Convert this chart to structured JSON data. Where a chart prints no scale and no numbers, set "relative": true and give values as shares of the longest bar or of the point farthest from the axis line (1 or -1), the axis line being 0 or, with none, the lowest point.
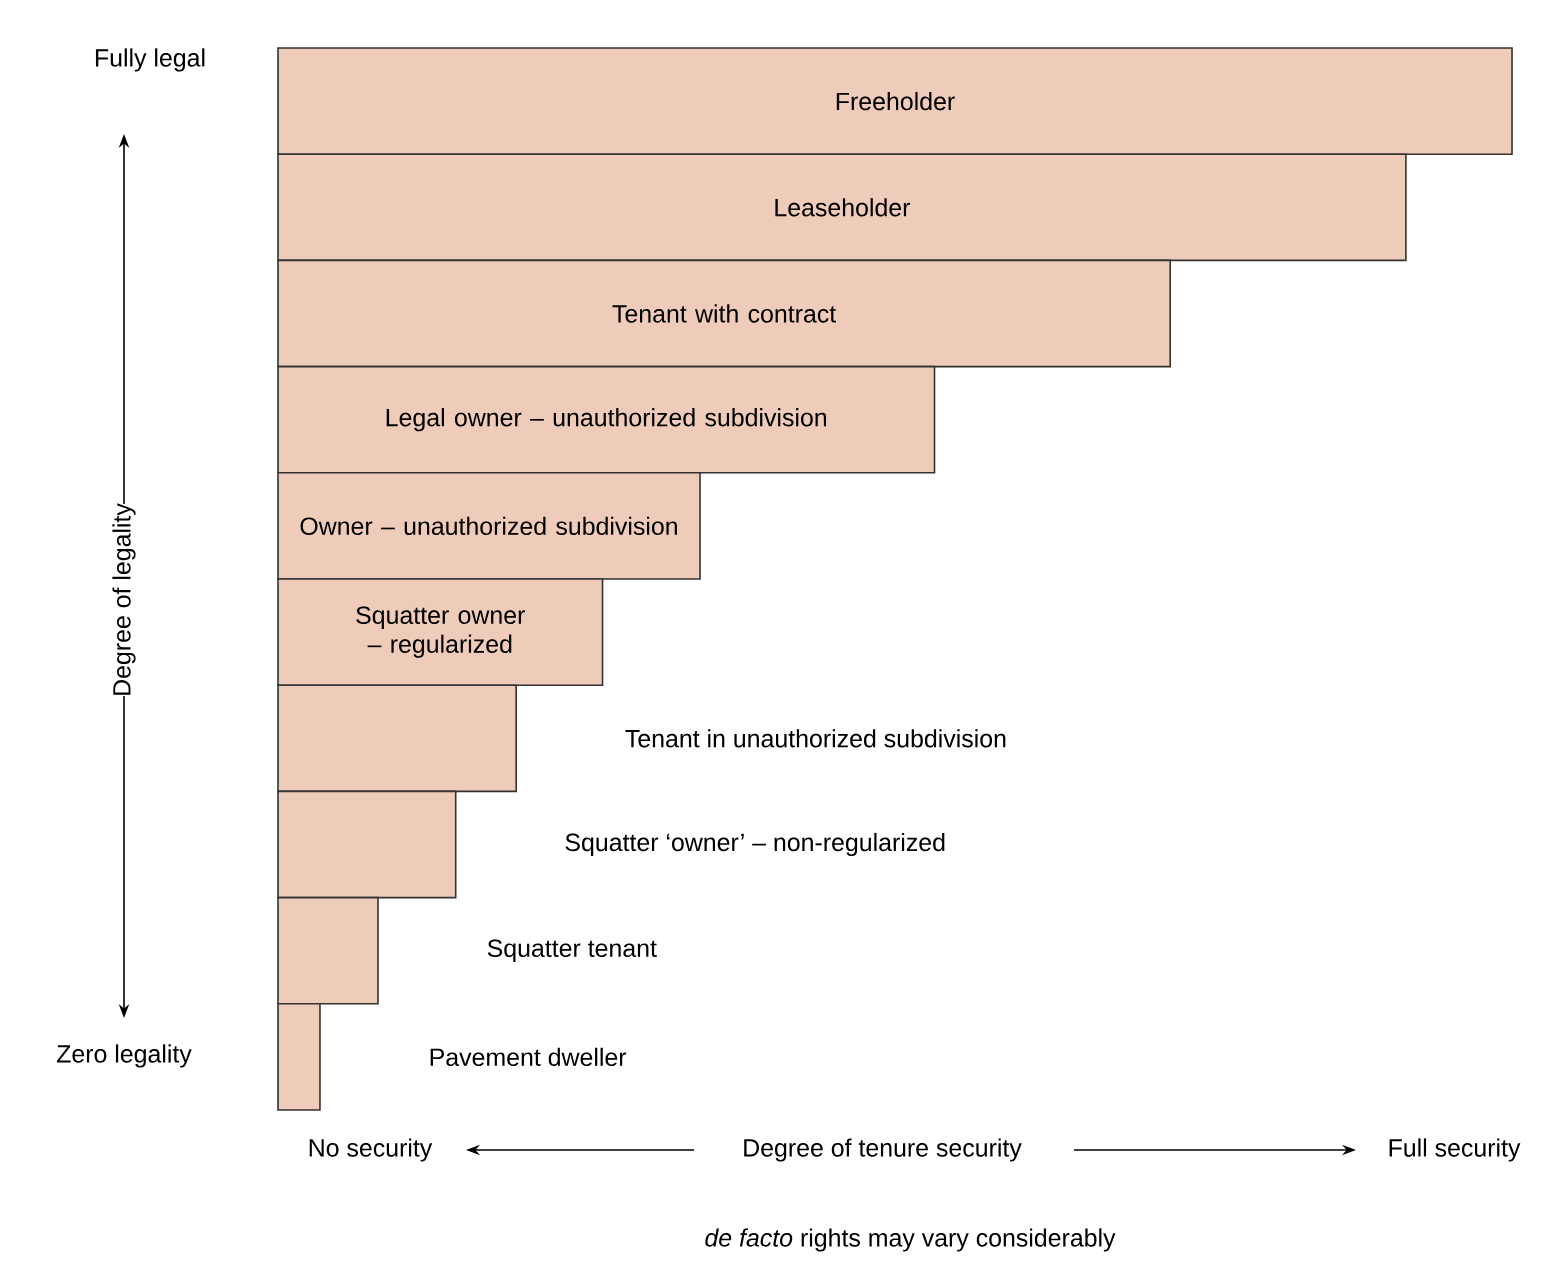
{
  "chart_data": {
    "type": "bar",
    "orientation": "horizontal",
    "relative": true,
    "categories": [
      "Freeholder",
      "Leaseholder",
      "Tenant with contract",
      "Legal owner – unauthorized subdivision",
      "Owner – unauthorized subdivision",
      "Squatter owner – regularized",
      "Tenant in unauthorized subdivision",
      "Squatter ‘owner’ – non-regularized",
      "Squatter tenant",
      "Pavement dweller"
    ],
    "values": [
      1,
      0.914,
      0.723,
      0.532,
      0.342,
      0.263,
      0.193,
      0.144,
      0.081,
      0.034
    ],
    "color": "#efcbb9",
    "xlabel": "Degree of tenure security",
    "annotations": [
      "Fully legal",
      "Zero legality",
      "No security",
      "Full security",
      "*de facto* rights may vary considerably",
      "Degree of legality"
    ]
  }
}
